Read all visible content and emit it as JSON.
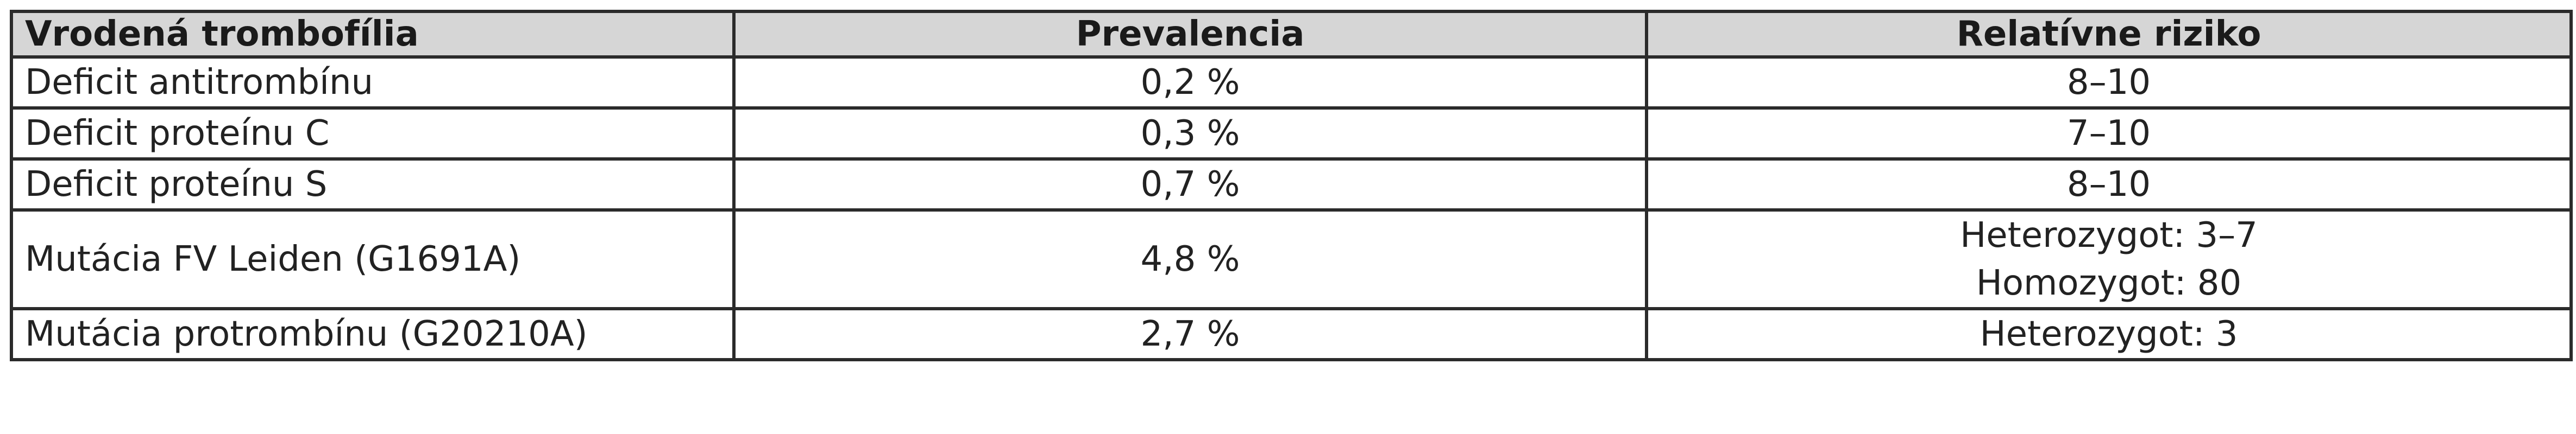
{
  "table": {
    "headers": [
      "Vrodená trombofília",
      "Prevalencia",
      "Relatívne riziko"
    ],
    "rows": [
      {
        "name": "Deficit antitrombínu",
        "prevalence": "0,2 %",
        "risk": [
          "8–10"
        ]
      },
      {
        "name": "Deficit proteínu C",
        "prevalence": "0,3 %",
        "risk": [
          "7–10"
        ]
      },
      {
        "name": "Deficit proteínu S",
        "prevalence": "0,7 %",
        "risk": [
          "8–10"
        ]
      },
      {
        "name": "Mutácia FV Leiden (G1691A)",
        "prevalence": "4,8 %",
        "risk": [
          "Heterozygot: 3–7",
          "Homozygot: 80"
        ]
      },
      {
        "name": "Mutácia protrombínu (G20210A)",
        "prevalence": "2,7 %",
        "risk": [
          "Heterozygot: 3"
        ]
      }
    ]
  },
  "colors": {
    "header_bg": "#d6d6d6",
    "border": "#2b2b2b"
  }
}
